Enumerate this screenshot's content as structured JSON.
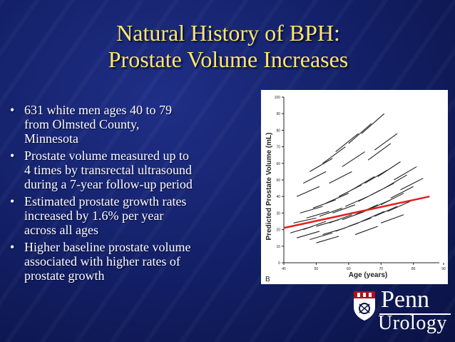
{
  "slide": {
    "title_line1": "Natural History of BPH:",
    "title_line2": "Prostate Volume Increases",
    "bullet_glyph": "•",
    "bullets": [
      {
        "line1": "631 white men ages 40 to 79",
        "line2": "from Olmsted County,",
        "line3": "Minnesota"
      },
      {
        "line1": "Prostate volume measured up to",
        "line2": "4 times by transrectal ultrasound",
        "line3": "during a 7-year follow-up period"
      },
      {
        "line1": "Estimated prostate growth rates",
        "line2": "increased by 1.6% per year",
        "line3": "across all ages"
      },
      {
        "line1": "Higher baseline prostate volume",
        "line2": "associated with higher rates of",
        "line3": "prostate growth"
      }
    ]
  },
  "chart_data": {
    "type": "line",
    "xlabel": "Age (years)",
    "ylabel": "Predicted Prostate Volume (mL)",
    "panel_label": "B",
    "xlim": [
      40,
      88
    ],
    "ylim": [
      0,
      100
    ],
    "x_ticks": [
      "40",
      "50",
      "60",
      "70",
      "80",
      "90"
    ],
    "y_ticks": [
      "0",
      "10",
      "20",
      "30",
      "40",
      "50",
      "60",
      "70",
      "80",
      "90",
      "100"
    ],
    "grid": false,
    "trend_color": "#e02020",
    "individual_color": "#222222",
    "trend": {
      "x": [
        40,
        85
      ],
      "y": [
        21,
        40
      ]
    },
    "individual_segments": [
      [
        [
          42,
          18
        ],
        [
          49,
          22
        ]
      ],
      [
        [
          43,
          24
        ],
        [
          50,
          27
        ]
      ],
      [
        [
          44,
          15
        ],
        [
          51,
          19
        ]
      ],
      [
        [
          45,
          30
        ],
        [
          52,
          34
        ]
      ],
      [
        [
          46,
          20
        ],
        [
          53,
          25
        ]
      ],
      [
        [
          47,
          27
        ],
        [
          54,
          31
        ]
      ],
      [
        [
          48,
          14
        ],
        [
          55,
          18
        ]
      ],
      [
        [
          49,
          33
        ],
        [
          56,
          38
        ]
      ],
      [
        [
          50,
          22
        ],
        [
          57,
          26
        ]
      ],
      [
        [
          51,
          28
        ],
        [
          58,
          33
        ]
      ],
      [
        [
          52,
          17
        ],
        [
          59,
          21
        ]
      ],
      [
        [
          53,
          36
        ],
        [
          60,
          42
        ]
      ],
      [
        [
          54,
          24
        ],
        [
          61,
          29
        ]
      ],
      [
        [
          55,
          30
        ],
        [
          62,
          35
        ]
      ],
      [
        [
          56,
          19
        ],
        [
          63,
          24
        ]
      ],
      [
        [
          57,
          40
        ],
        [
          64,
          47
        ]
      ],
      [
        [
          58,
          26
        ],
        [
          65,
          31
        ]
      ],
      [
        [
          59,
          34
        ],
        [
          66,
          40
        ]
      ],
      [
        [
          60,
          22
        ],
        [
          67,
          27
        ]
      ],
      [
        [
          61,
          44
        ],
        [
          68,
          52
        ]
      ],
      [
        [
          62,
          29
        ],
        [
          69,
          35
        ]
      ],
      [
        [
          63,
          37
        ],
        [
          70,
          44
        ]
      ],
      [
        [
          64,
          25
        ],
        [
          71,
          31
        ]
      ],
      [
        [
          65,
          48
        ],
        [
          72,
          56
        ]
      ],
      [
        [
          66,
          32
        ],
        [
          73,
          38
        ]
      ],
      [
        [
          67,
          41
        ],
        [
          74,
          48
        ]
      ],
      [
        [
          68,
          28
        ],
        [
          75,
          34
        ]
      ],
      [
        [
          69,
          52
        ],
        [
          76,
          61
        ]
      ],
      [
        [
          70,
          35
        ],
        [
          77,
          42
        ]
      ],
      [
        [
          71,
          45
        ],
        [
          78,
          53
        ]
      ],
      [
        [
          72,
          31
        ],
        [
          79,
          37
        ]
      ],
      [
        [
          73,
          39
        ],
        [
          80,
          46
        ]
      ],
      [
        [
          44,
          40
        ],
        [
          51,
          46
        ]
      ],
      [
        [
          48,
          55
        ],
        [
          55,
          63
        ]
      ],
      [
        [
          52,
          60
        ],
        [
          59,
          70
        ]
      ],
      [
        [
          56,
          67
        ],
        [
          63,
          78
        ]
      ],
      [
        [
          60,
          72
        ],
        [
          67,
          84
        ]
      ],
      [
        [
          64,
          78
        ],
        [
          71,
          90
        ]
      ],
      [
        [
          46,
          48
        ],
        [
          53,
          55
        ]
      ],
      [
        [
          58,
          58
        ],
        [
          65,
          67
        ]
      ],
      [
        [
          66,
          62
        ],
        [
          73,
          72
        ]
      ],
      [
        [
          74,
          50
        ],
        [
          81,
          58
        ]
      ],
      [
        [
          76,
          44
        ],
        [
          83,
          51
        ]
      ],
      [
        [
          62,
          17
        ],
        [
          69,
          22
        ]
      ],
      [
        [
          70,
          24
        ],
        [
          77,
          29
        ]
      ],
      [
        [
          50,
          12
        ],
        [
          57,
          16
        ]
      ],
      [
        [
          54,
          48
        ],
        [
          61,
          55
        ]
      ],
      [
        [
          68,
          68
        ],
        [
          75,
          78
        ]
      ]
    ]
  },
  "logo": {
    "name": "Penn",
    "department": "Urology"
  }
}
